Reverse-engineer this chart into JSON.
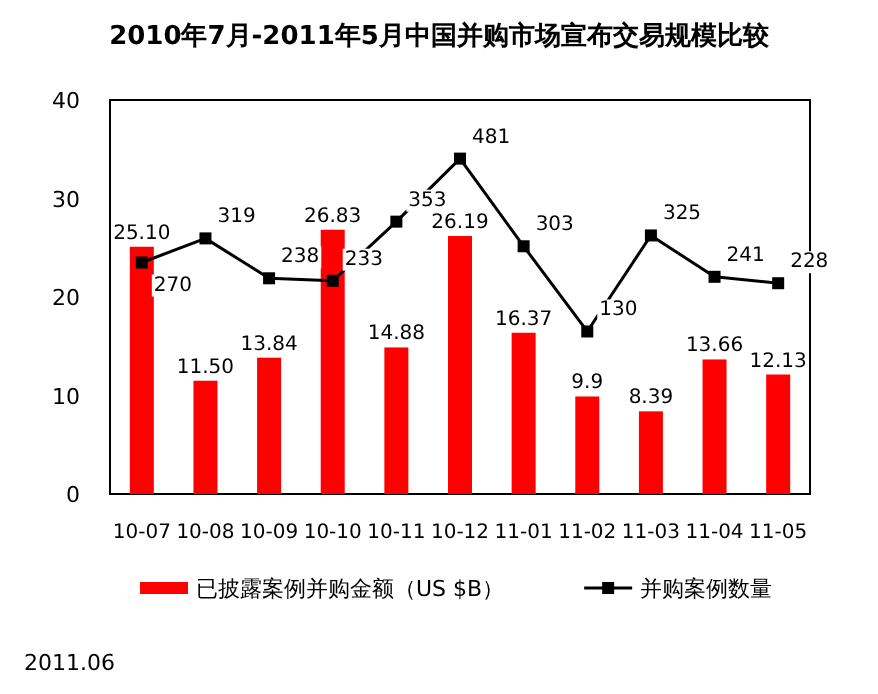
{
  "chart_data": {
    "type": "bar",
    "title": "2010年7月-2011年5月中国并购市场宣布交易规模比较",
    "categories": [
      "10-07",
      "10-08",
      "10-09",
      "10-10",
      "10-11",
      "10-12",
      "11-01",
      "11-02",
      "11-03",
      "11-04",
      "11-05"
    ],
    "series": [
      {
        "name": "已披露案例并购金额（US $B）",
        "color": "#ff0000",
        "values": [
          25.1,
          11.5,
          13.84,
          26.83,
          14.88,
          26.19,
          16.37,
          9.9,
          8.39,
          13.66,
          12.13
        ],
        "value_labels": [
          "25.10",
          "11.50",
          "13.84",
          "26.83",
          "14.88",
          "26.19",
          "16.37",
          "9.9",
          "8.39",
          "13.66",
          "12.13"
        ]
      },
      {
        "name": "并购案例数量",
        "type": "line",
        "axis": "y2",
        "color": "#000000",
        "values": [
          270,
          319,
          238,
          233,
          353,
          481,
          303,
          130,
          325,
          241,
          228
        ]
      }
    ],
    "ylim": [
      0,
      40
    ],
    "yticks": [
      0,
      10,
      20,
      30,
      40
    ],
    "y2lim": [
      -200,
      600
    ],
    "data_labels": true,
    "legend": "bottom",
    "marker": "square",
    "grid": false,
    "annotations": [
      "2011.06"
    ]
  }
}
